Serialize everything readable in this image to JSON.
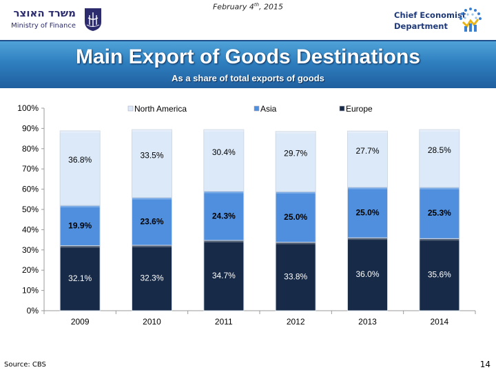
{
  "header": {
    "date_prefix": "February 4",
    "date_sup": "th",
    "date_suffix": ", 2015",
    "ministry_hebrew": "משרד האוצר",
    "ministry_english": "Ministry of Finance",
    "dept_line1": "Chief Economist",
    "dept_line2": "Department"
  },
  "slide": {
    "title": "Main Export of Goods Destinations",
    "subtitle": "As a share of total exports of goods",
    "source": "Source: CBS",
    "page_number": "14"
  },
  "colors": {
    "north_america": "#dce9f8",
    "asia": "#4f8fde",
    "europe": "#172a47",
    "banner": "#2f7fbf"
  },
  "chart_data": {
    "type": "bar",
    "stacked": true,
    "categories": [
      "2009",
      "2010",
      "2011",
      "2012",
      "2013",
      "2014"
    ],
    "series": [
      {
        "name": "Europe",
        "values": [
          32.1,
          32.3,
          34.7,
          33.8,
          36.0,
          35.6
        ],
        "labels": [
          "32.1%",
          "32.3%",
          "34.7%",
          "33.8%",
          "36.0%",
          "35.6%"
        ]
      },
      {
        "name": "Asia",
        "values": [
          19.9,
          23.6,
          24.3,
          25.0,
          25.0,
          25.3
        ],
        "labels": [
          "19.9%",
          "23.6%",
          "24.3%",
          "25.0%",
          "25.0%",
          "25.3%"
        ]
      },
      {
        "name": "North America",
        "values": [
          36.8,
          33.5,
          30.4,
          29.7,
          27.7,
          28.5
        ],
        "labels": [
          "36.8%",
          "33.5%",
          "30.4%",
          "29.7%",
          "27.7%",
          "28.5%"
        ]
      }
    ],
    "legend": [
      "North America",
      "Asia",
      "Europe"
    ],
    "legend_position": "top",
    "ylim": [
      0,
      100
    ],
    "yticks": [
      "0%",
      "10%",
      "20%",
      "30%",
      "40%",
      "50%",
      "60%",
      "70%",
      "80%",
      "90%",
      "100%"
    ],
    "grid": false
  }
}
